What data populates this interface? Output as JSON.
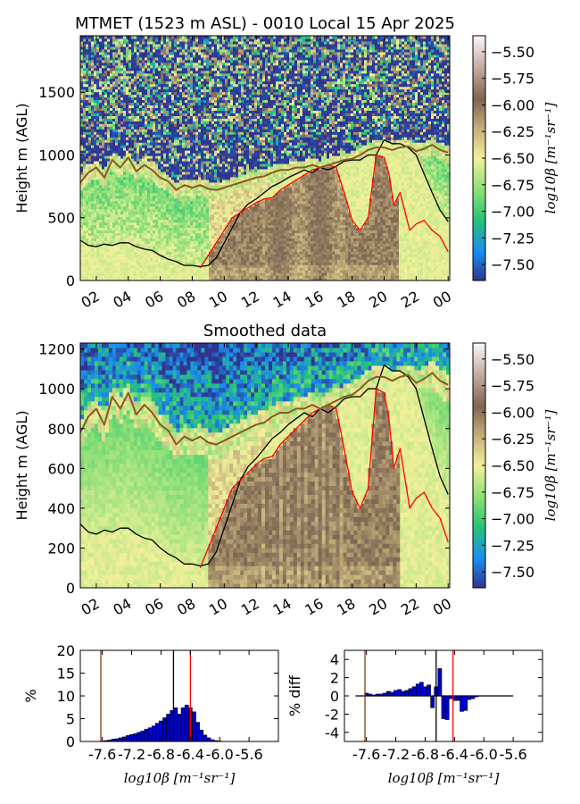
{
  "chart_data": [
    {
      "type": "heatmap",
      "title": "MTMET (1523 m ASL) - 0010 Local 15 Apr 2025",
      "xlabel": "",
      "ylabel": "Height m (AGL)",
      "xlim": [
        1,
        24.1
      ],
      "ylim": [
        0,
        1950
      ],
      "xticks": [
        "02",
        "04",
        "06",
        "08",
        "10",
        "12",
        "14",
        "16",
        "18",
        "20",
        "22",
        "00"
      ],
      "yticks": [
        0,
        500,
        1000,
        1500
      ],
      "colorbar": {
        "label": "log10β [m⁻¹sr⁻¹]",
        "range": [
          -7.65,
          -5.35
        ],
        "ticks": [
          -5.5,
          -5.75,
          -6.0,
          -6.25,
          -6.5,
          -6.75,
          -7.0,
          -7.25,
          -7.5
        ],
        "tick_labels": [
          "−5.50",
          "−5.75",
          "−6.00",
          "−6.25",
          "−6.50",
          "−6.75",
          "−7.00",
          "−7.25",
          "−7.50"
        ],
        "colors": [
          "#30358f",
          "#1a8ef0",
          "#27c472",
          "#8ddf78",
          "#f2f09a",
          "#c4b07c",
          "#7e6652",
          "#c3aba0",
          "#fbf8f6"
        ]
      },
      "series": [
        {
          "color": "#000000",
          "x": [
            1.0,
            1.5,
            2.0,
            2.5,
            3.0,
            3.5,
            4.0,
            4.5,
            5.0,
            5.5,
            6.0,
            6.5,
            7.0,
            7.5,
            8.0,
            8.5,
            9.0,
            9.5,
            10.0,
            10.5,
            11.0,
            11.5,
            12.0,
            12.5,
            13.0,
            13.5,
            14.0,
            14.5,
            15.0,
            15.5,
            16.0,
            16.5,
            17.0,
            17.5,
            18.0,
            18.5,
            19.0,
            19.5,
            20.0,
            20.5,
            21.0,
            21.5,
            22.0,
            22.5,
            23.0,
            23.5,
            24.0
          ],
          "y": [
            320,
            280,
            270,
            290,
            280,
            300,
            300,
            270,
            250,
            240,
            200,
            170,
            150,
            120,
            120,
            110,
            120,
            180,
            300,
            420,
            540,
            610,
            650,
            700,
            750,
            780,
            820,
            850,
            880,
            860,
            900,
            880,
            910,
            950,
            960,
            960,
            1000,
            1000,
            1120,
            1090,
            1090,
            1060,
            1000,
            850,
            700,
            560,
            470
          ]
        },
        {
          "color": "#ff0000",
          "x": [
            8.5,
            9.0,
            9.5,
            10.0,
            10.5,
            11.0,
            11.5,
            12.0,
            12.5,
            13.0,
            13.5,
            14.0,
            14.5,
            15.0,
            15.5,
            16.0,
            16.5,
            17.0,
            17.5,
            18.0,
            18.5,
            19.0,
            19.5,
            20.0,
            20.3,
            20.6,
            21.0,
            21.3,
            21.6,
            22.0,
            22.5,
            23.0,
            23.5,
            24.0
          ],
          "y": [
            100,
            200,
            300,
            400,
            500,
            540,
            580,
            620,
            650,
            660,
            720,
            760,
            800,
            840,
            880,
            900,
            920,
            900,
            700,
            480,
            400,
            500,
            1000,
            980,
            850,
            600,
            700,
            550,
            400,
            450,
            480,
            400,
            350,
            230
          ]
        },
        {
          "color": "#8a5a1e",
          "x": [
            1.0,
            1.5,
            2.0,
            2.5,
            3.0,
            3.5,
            4.0,
            4.5,
            5.0,
            5.5,
            6.0,
            6.5,
            7.0,
            7.5,
            8.0,
            8.5,
            9.0,
            9.5,
            10.0,
            10.5,
            11.0,
            11.5,
            12.0,
            12.5,
            13.0,
            13.5,
            14.0,
            14.5,
            15.0,
            15.5,
            16.0,
            16.5,
            17.0,
            17.5,
            18.0,
            18.5,
            19.0,
            19.5,
            20.0,
            20.5,
            21.0,
            21.5,
            22.0,
            22.5,
            23.0,
            23.5,
            24.0
          ],
          "y": [
            780,
            860,
            900,
            820,
            960,
            900,
            980,
            870,
            920,
            880,
            820,
            790,
            720,
            760,
            740,
            760,
            730,
            720,
            740,
            760,
            780,
            800,
            820,
            830,
            860,
            880,
            880,
            900,
            900,
            920,
            900,
            920,
            940,
            960,
            970,
            1000,
            1040,
            1060,
            1060,
            1040,
            1060,
            1070,
            1030,
            1050,
            1080,
            1040,
            1020
          ]
        }
      ]
    },
    {
      "type": "heatmap",
      "title": "Smoothed data",
      "xlabel": "",
      "ylabel": "Height m (AGL)",
      "xlim": [
        1,
        24.1
      ],
      "ylim": [
        0,
        1230
      ],
      "xticks": [
        "02",
        "04",
        "06",
        "08",
        "10",
        "12",
        "14",
        "16",
        "18",
        "20",
        "22",
        "00"
      ],
      "yticks": [
        0,
        200,
        400,
        600,
        800,
        1000,
        1200
      ],
      "colorbar": {
        "label": "log10β [m⁻¹sr⁻¹]",
        "range": [
          -7.65,
          -5.35
        ],
        "ticks": [
          -5.5,
          -5.75,
          -6.0,
          -6.25,
          -6.5,
          -6.75,
          -7.0,
          -7.25,
          -7.5
        ],
        "tick_labels": [
          "−5.50",
          "−5.75",
          "−6.00",
          "−6.25",
          "−6.50",
          "−6.75",
          "−7.00",
          "−7.25",
          "−7.50"
        ]
      }
    },
    {
      "type": "bar",
      "xlabel": "log10β [m⁻¹sr⁻¹]",
      "ylabel": "%",
      "xlim": [
        -7.9,
        -5.2
      ],
      "ylim": [
        0,
        20
      ],
      "xtick_labels": [
        "-7.6",
        "-7.2",
        "-6.8",
        "-6.4",
        "-6.0",
        "-5.6"
      ],
      "xtick_values": [
        -7.6,
        -7.2,
        -6.8,
        -6.4,
        -6.0,
        -5.6
      ],
      "yticks": [
        0,
        5,
        10,
        15,
        20
      ],
      "bin_width": 0.05,
      "x": [
        -7.6,
        -7.55,
        -7.5,
        -7.45,
        -7.4,
        -7.35,
        -7.3,
        -7.25,
        -7.2,
        -7.15,
        -7.1,
        -7.05,
        -7.0,
        -6.95,
        -6.9,
        -6.85,
        -6.8,
        -6.75,
        -6.7,
        -6.65,
        -6.6,
        -6.55,
        -6.5,
        -6.45,
        -6.4,
        -6.35,
        -6.3,
        -6.25,
        -6.2,
        -6.15,
        -6.1,
        -6.05,
        -6.0
      ],
      "values": [
        0.1,
        0.2,
        0.3,
        0.5,
        0.6,
        0.8,
        1.0,
        1.3,
        1.5,
        1.7,
        2.0,
        2.3,
        2.7,
        3.0,
        3.4,
        4.0,
        4.5,
        5.2,
        6.0,
        6.8,
        7.4,
        6.0,
        7.4,
        8.0,
        7.4,
        6.5,
        4.2,
        2.5,
        1.4,
        0.8,
        0.4,
        0.2,
        0.1
      ],
      "vlines": [
        {
          "x": -7.62,
          "color": "#8b3a0a"
        },
        {
          "x": -6.63,
          "color": "#000000"
        },
        {
          "x": -6.4,
          "color": "#ff0000"
        }
      ]
    },
    {
      "type": "bar",
      "xlabel": "log10β [m⁻¹sr⁻¹]",
      "ylabel": "% diff",
      "xlim": [
        -7.9,
        -5.2
      ],
      "ylim": [
        -5,
        5
      ],
      "xtick_labels": [
        "-7.6",
        "-7.2",
        "-6.8",
        "-6.4",
        "-6.0",
        "-5.6"
      ],
      "xtick_values": [
        -7.6,
        -7.2,
        -6.8,
        -6.4,
        -6.0,
        -5.6
      ],
      "yticks": [
        -4,
        -2,
        0,
        2,
        4
      ],
      "bin_width": 0.05,
      "x": [
        -7.6,
        -7.55,
        -7.5,
        -7.45,
        -7.4,
        -7.35,
        -7.3,
        -7.25,
        -7.2,
        -7.15,
        -7.1,
        -7.05,
        -7.0,
        -6.95,
        -6.9,
        -6.85,
        -6.8,
        -6.75,
        -6.7,
        -6.65,
        -6.6,
        -6.55,
        -6.5,
        -6.45,
        -6.4,
        -6.35,
        -6.3,
        -6.25,
        -6.2,
        -6.15,
        -6.1,
        -6.05,
        -6.0
      ],
      "values": [
        0.3,
        0.2,
        0.1,
        0.2,
        0.2,
        0.3,
        0.5,
        0.4,
        0.6,
        0.7,
        0.5,
        0.6,
        0.8,
        1.0,
        1.3,
        1.5,
        1.0,
        1.2,
        -1.3,
        1.0,
        3.0,
        -2.5,
        -2.6,
        -0.3,
        -0.5,
        -0.5,
        -1.7,
        -1.6,
        -0.4,
        -0.3,
        -0.1,
        0.0,
        0.0
      ],
      "baseline": {
        "x0": -7.75,
        "x1": -5.6,
        "y": 0
      },
      "vlines": [
        {
          "x": -7.62,
          "color": "#8b3a0a"
        },
        {
          "x": -6.65,
          "color": "#000000"
        },
        {
          "x": -6.42,
          "color": "#ff0000"
        }
      ]
    }
  ]
}
